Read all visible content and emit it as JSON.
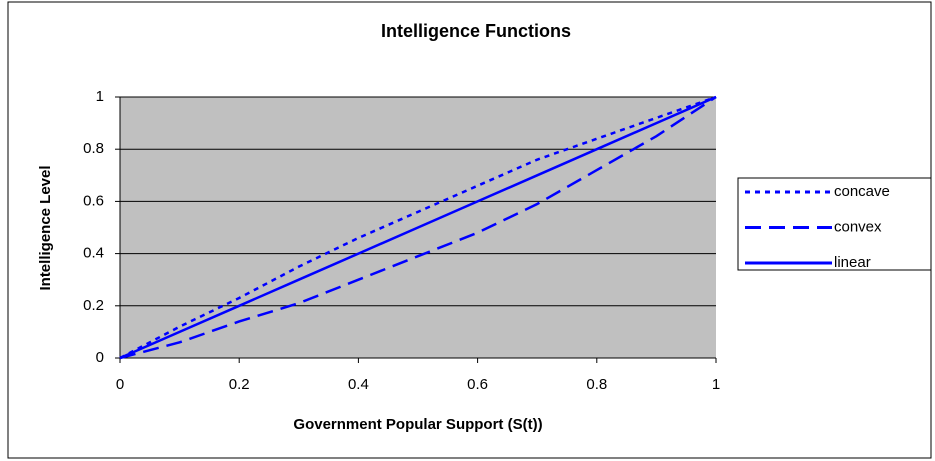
{
  "chart_data": {
    "type": "line",
    "title": "Intelligence Functions",
    "xlabel": "Government Popular Support (S(t))",
    "ylabel": "Intelligence Level",
    "x": [
      0,
      0.1,
      0.2,
      0.3,
      0.4,
      0.5,
      0.6,
      0.7,
      0.8,
      0.9,
      1
    ],
    "series": [
      {
        "name": "concave",
        "color": "#0000ff",
        "dash": "dotted",
        "values": [
          0,
          0.12,
          0.23,
          0.35,
          0.46,
          0.56,
          0.66,
          0.76,
          0.84,
          0.92,
          1
        ]
      },
      {
        "name": "convex",
        "color": "#0000ff",
        "dash": "dashed",
        "values": [
          0,
          0.06,
          0.14,
          0.21,
          0.3,
          0.39,
          0.48,
          0.59,
          0.72,
          0.85,
          1
        ]
      },
      {
        "name": "linear",
        "color": "#0000ff",
        "dash": "solid",
        "values": [
          0,
          0.1,
          0.2,
          0.3,
          0.4,
          0.5,
          0.6,
          0.7,
          0.8,
          0.9,
          1
        ]
      }
    ],
    "xlim": [
      0,
      1
    ],
    "xticks": [
      0,
      0.2,
      0.4,
      0.6,
      0.8,
      1
    ],
    "ylim": [
      0,
      1
    ],
    "yticks": [
      0,
      0.2,
      0.4,
      0.6,
      0.8,
      1
    ],
    "grid": true,
    "legend": "right"
  }
}
